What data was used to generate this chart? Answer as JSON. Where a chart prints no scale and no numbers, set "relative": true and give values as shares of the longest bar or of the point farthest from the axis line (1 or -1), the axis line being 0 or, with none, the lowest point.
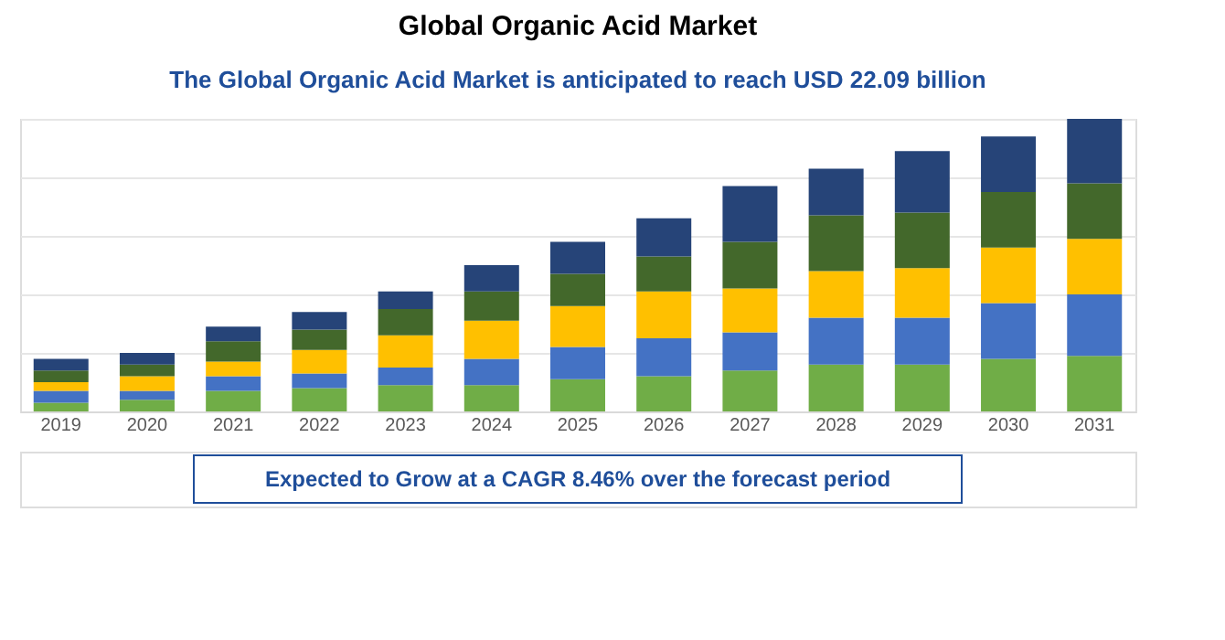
{
  "chart_data": {
    "type": "bar",
    "title": "Global Organic Acid Market",
    "subtitle": "The Global Organic Acid Market is anticipated to reach USD 22.09 billion",
    "annotations": [
      "Expected to Grow at a CAGR 8.46% over the forecast period"
    ],
    "categories": [
      "2019",
      "2020",
      "2021",
      "2022",
      "2023",
      "2024",
      "2025",
      "2026",
      "2027",
      "2028",
      "2029",
      "2030",
      "2031"
    ],
    "stacked": true,
    "relative": true,
    "grid": "y",
    "legend": false,
    "series": [
      {
        "color": "#70ad47",
        "values": [
          0.03,
          0.04,
          0.07,
          0.08,
          0.09,
          0.09,
          0.11,
          0.12,
          0.14,
          0.16,
          0.16,
          0.18,
          0.19
        ]
      },
      {
        "color": "#4472c4",
        "values": [
          0.04,
          0.03,
          0.05,
          0.05,
          0.06,
          0.09,
          0.11,
          0.13,
          0.13,
          0.16,
          0.16,
          0.19,
          0.21
        ]
      },
      {
        "color": "#ffc000",
        "values": [
          0.03,
          0.05,
          0.05,
          0.08,
          0.11,
          0.13,
          0.14,
          0.16,
          0.15,
          0.16,
          0.17,
          0.19,
          0.19
        ]
      },
      {
        "color": "#43682b",
        "values": [
          0.04,
          0.04,
          0.07,
          0.07,
          0.09,
          0.1,
          0.11,
          0.12,
          0.16,
          0.19,
          0.19,
          0.19,
          0.19
        ]
      },
      {
        "color": "#264478",
        "values": [
          0.04,
          0.04,
          0.05,
          0.06,
          0.06,
          0.09,
          0.11,
          0.13,
          0.19,
          0.16,
          0.21,
          0.19,
          0.22
        ]
      }
    ]
  }
}
